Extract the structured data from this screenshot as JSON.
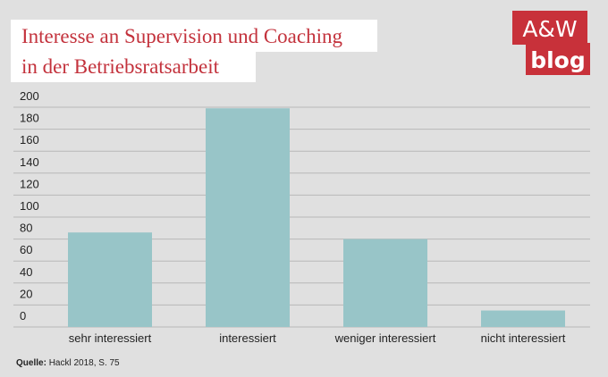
{
  "chart_data": {
    "type": "bar",
    "title": [
      "Interesse an Supervision und Coaching",
      "in der Betriebsratsarbeit"
    ],
    "categories": [
      "sehr interessiert",
      "interessiert",
      "weniger interessiert",
      "nicht interessiert"
    ],
    "values": [
      86,
      199,
      80,
      15
    ],
    "color": "#98c5c8",
    "ylim": [
      0,
      200
    ],
    "yticks": [
      0,
      20,
      40,
      60,
      80,
      100,
      120,
      140,
      160,
      180,
      200
    ],
    "grid": true
  },
  "source_label": "Quelle:",
  "source": "Hackl 2018, S. 75",
  "logo": [
    "A&W",
    "blog"
  ]
}
